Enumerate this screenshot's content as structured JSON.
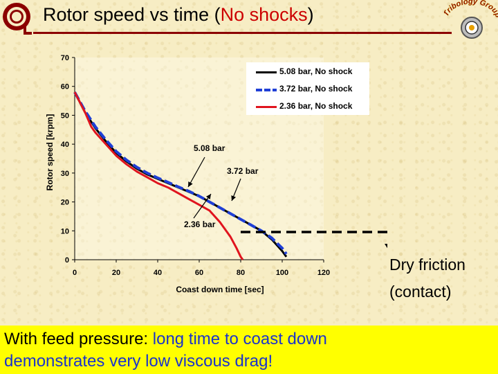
{
  "title": {
    "prefix": "Rotor speed vs time (",
    "highlight": "No shocks",
    "suffix": ")"
  },
  "logo_right_text": "Tribology Group",
  "chart_data": {
    "type": "line",
    "xlabel": "Coast down time [sec]",
    "ylabel": "Rotor speed [krpm]",
    "xlim": [
      0,
      120
    ],
    "ylim": [
      0,
      70
    ],
    "xticks": [
      0,
      20,
      40,
      60,
      80,
      100,
      120
    ],
    "yticks": [
      0,
      10,
      20,
      30,
      40,
      50,
      60,
      70
    ],
    "grid": false,
    "legend_position": "top-right",
    "series": [
      {
        "name": "5.08 bar, No shock",
        "color": "#000000",
        "dash": false,
        "x": [
          0,
          5,
          10,
          15,
          20,
          25,
          30,
          35,
          40,
          45,
          50,
          55,
          60,
          65,
          70,
          75,
          80,
          85,
          90,
          95,
          100,
          102
        ],
        "y": [
          58,
          51,
          45.5,
          41,
          37,
          34,
          31.5,
          29.5,
          28,
          26.5,
          25,
          23.5,
          22,
          20,
          18,
          16,
          14,
          12,
          10,
          7,
          3,
          1
        ]
      },
      {
        "name": "3.72 bar, No shock",
        "color": "#1f3fd6",
        "dash": true,
        "x": [
          0,
          5,
          10,
          15,
          20,
          25,
          30,
          35,
          40,
          45,
          50,
          55,
          60,
          65,
          70,
          75,
          80,
          85,
          90,
          95,
          100,
          102
        ],
        "y": [
          58,
          51.5,
          46,
          41.5,
          37.5,
          34.5,
          32,
          30,
          28.3,
          26.8,
          25.2,
          23.7,
          22,
          20,
          18,
          16,
          14,
          12,
          10,
          7.5,
          4,
          2
        ]
      },
      {
        "name": "2.36 bar, No shock",
        "color": "#e0141e",
        "dash": false,
        "x": [
          0,
          5,
          8,
          10,
          15,
          20,
          25,
          30,
          35,
          40,
          45,
          50,
          55,
          60,
          65,
          70,
          72,
          75,
          78,
          80,
          81
        ],
        "y": [
          58,
          51,
          46,
          44,
          40,
          36,
          33,
          30.5,
          28.5,
          26.5,
          25,
          23,
          21,
          19,
          17,
          13,
          11,
          8,
          4,
          1,
          0
        ]
      }
    ],
    "annotations": [
      {
        "text": "5.08 bar",
        "x": 54,
        "y": 22.5
      },
      {
        "text": "3.72 bar",
        "x": 65,
        "y": 19
      },
      {
        "text": "2.36 bar",
        "x": 48,
        "y": 23.5
      }
    ]
  },
  "dry_friction": {
    "line1": "Dry friction",
    "line2": "(contact)"
  },
  "caption": {
    "line1_black": "With feed pressure: ",
    "line1_blue": "long time to coast down",
    "line2_blue": "demonstrates very low viscous drag!"
  }
}
